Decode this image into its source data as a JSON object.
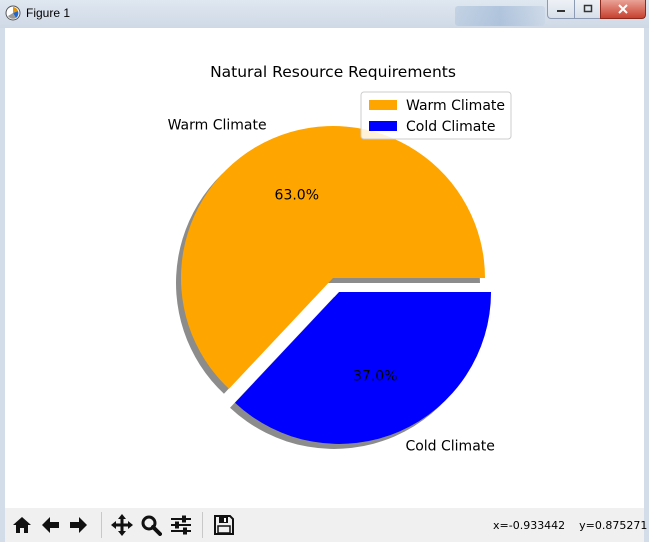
{
  "window": {
    "title": "Figure 1",
    "app_icon": "matplotlib-icon"
  },
  "toolbar": {
    "buttons": [
      {
        "name": "home-icon",
        "tooltip": "Home"
      },
      {
        "name": "back-arrow-icon",
        "tooltip": "Back"
      },
      {
        "name": "forward-arrow-icon",
        "tooltip": "Forward"
      },
      {
        "name": "pan-icon",
        "tooltip": "Pan"
      },
      {
        "name": "zoom-icon",
        "tooltip": "Zoom"
      },
      {
        "name": "configure-subplots-icon",
        "tooltip": "Subplots"
      },
      {
        "name": "save-icon",
        "tooltip": "Save"
      }
    ],
    "coords": "x=-0.933442    y=0.875271"
  },
  "chart_data": {
    "type": "pie",
    "title": "Natural Resource Requirements",
    "labels": [
      "Warm Climate",
      "Cold Climate"
    ],
    "values": [
      63.0,
      37.0
    ],
    "autopct": [
      "63.0%",
      "37.0%"
    ],
    "colors": [
      "#ffa500",
      "#0000ff"
    ],
    "explode": [
      0,
      1
    ],
    "shadow": true,
    "legend": {
      "placement": "upper right",
      "entries": [
        "Warm Climate",
        "Cold Climate"
      ]
    }
  }
}
